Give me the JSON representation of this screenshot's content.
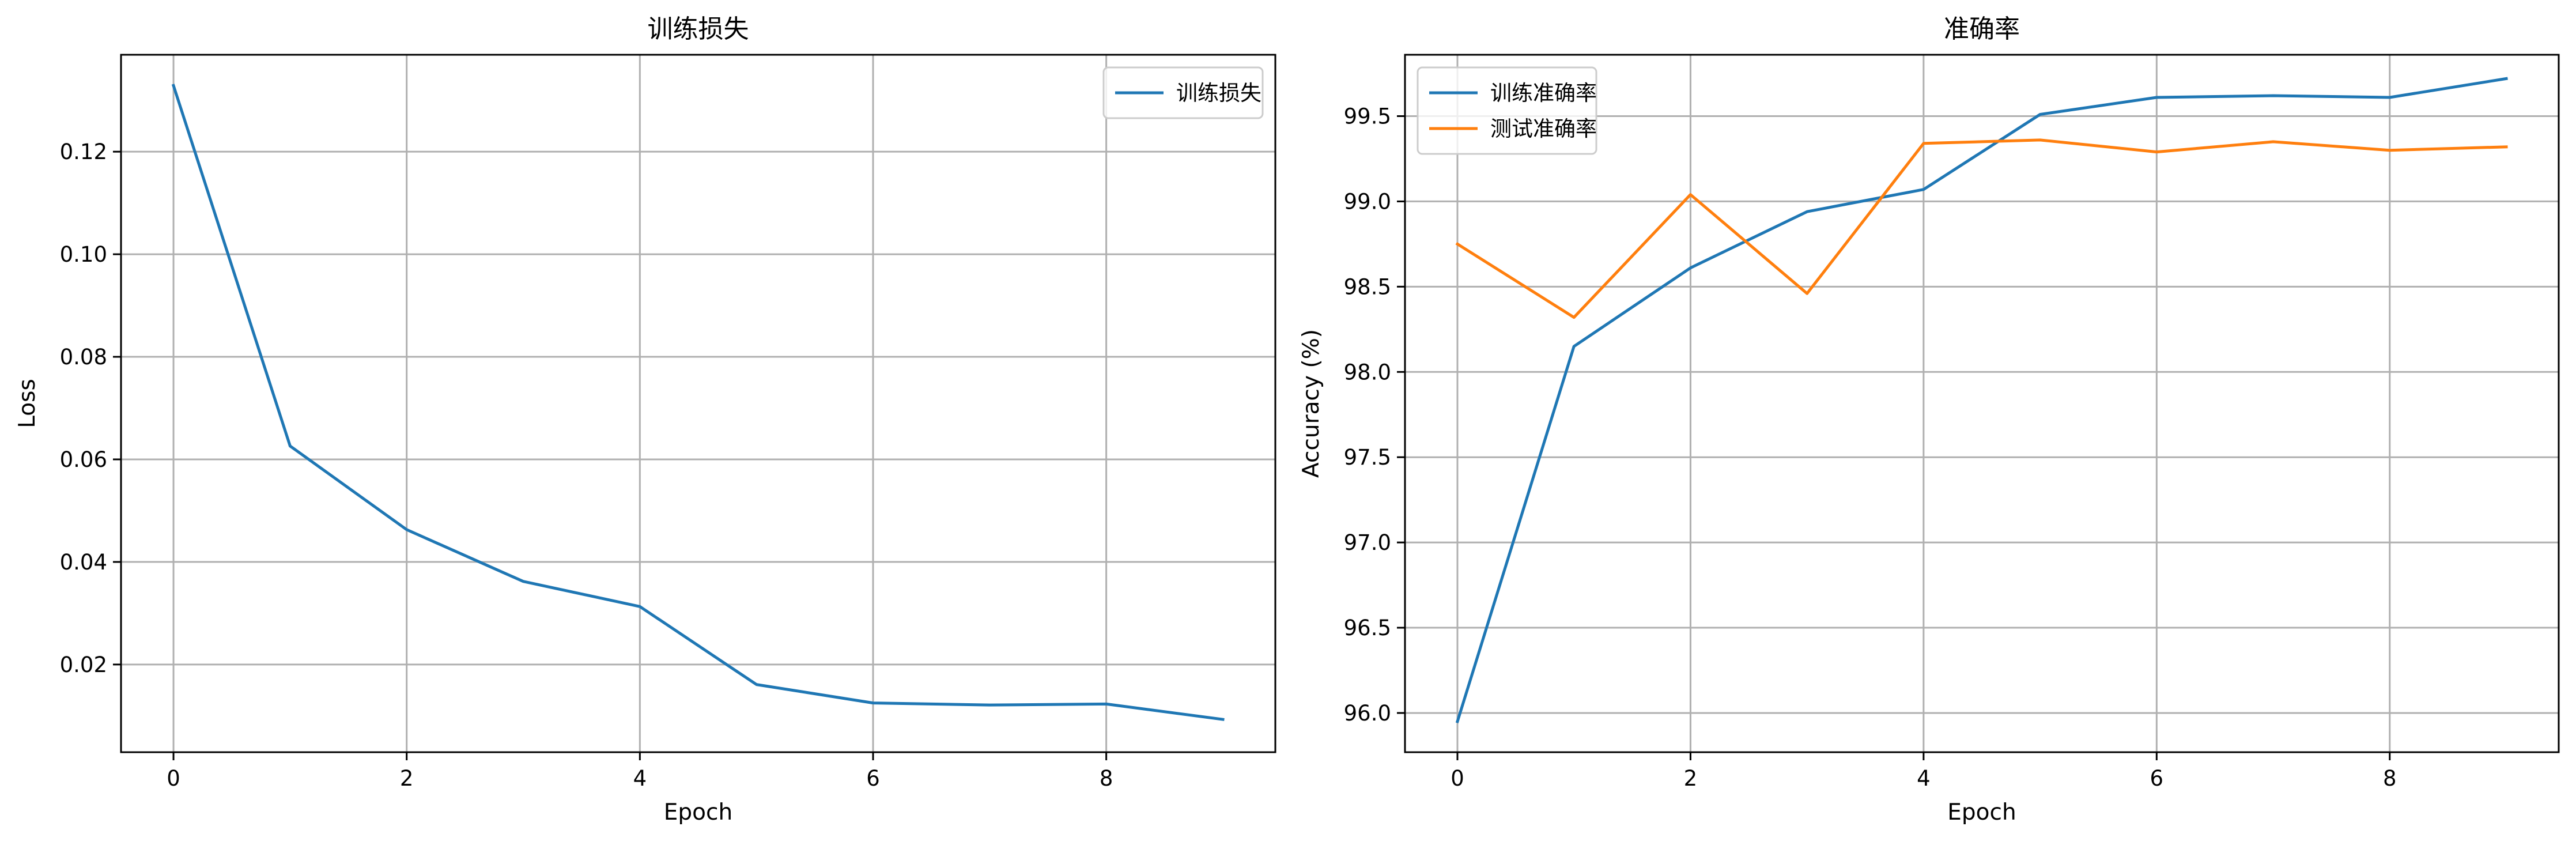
{
  "chart_data": [
    {
      "type": "line",
      "title": "训练损失",
      "xlabel": "Epoch",
      "ylabel": "Loss",
      "x": [
        0,
        1,
        2,
        3,
        4,
        5,
        6,
        7,
        8,
        9
      ],
      "xlim": [
        -0.45,
        9.45
      ],
      "ylim": [
        0.0029,
        0.1389
      ],
      "xticks": [
        0,
        2,
        4,
        6,
        8
      ],
      "xtick_labels": [
        "0",
        "2",
        "4",
        "6",
        "8"
      ],
      "yticks": [
        0.02,
        0.04,
        0.06,
        0.08,
        0.1,
        0.12
      ],
      "ytick_labels": [
        "0.02",
        "0.04",
        "0.06",
        "0.08",
        "0.10",
        "0.12"
      ],
      "grid": true,
      "legend_position": "upper right",
      "series": [
        {
          "name": "训练损失",
          "color": "#1f77b4",
          "values": [
            0.1329,
            0.0626,
            0.0463,
            0.0362,
            0.0313,
            0.0161,
            0.0125,
            0.0121,
            0.0123,
            0.0093
          ]
        }
      ]
    },
    {
      "type": "line",
      "title": "准确率",
      "xlabel": "Epoch",
      "ylabel": "Accuracy (%)",
      "x": [
        0,
        1,
        2,
        3,
        4,
        5,
        6,
        7,
        8,
        9
      ],
      "xlim": [
        -0.45,
        9.45
      ],
      "ylim": [
        95.77,
        99.86
      ],
      "xticks": [
        0,
        2,
        4,
        6,
        8
      ],
      "xtick_labels": [
        "0",
        "2",
        "4",
        "6",
        "8"
      ],
      "yticks": [
        96.0,
        96.5,
        97.0,
        97.5,
        98.0,
        98.5,
        99.0,
        99.5
      ],
      "ytick_labels": [
        "96.0",
        "96.5",
        "97.0",
        "97.5",
        "98.0",
        "98.5",
        "99.0",
        "99.5"
      ],
      "grid": true,
      "legend_position": "upper left",
      "series": [
        {
          "name": "训练准确率",
          "color": "#1f77b4",
          "values": [
            95.95,
            98.15,
            98.61,
            98.94,
            99.07,
            99.51,
            99.61,
            99.62,
            99.61,
            99.72
          ]
        },
        {
          "name": "测试准确率",
          "color": "#ff7f0e",
          "values": [
            98.75,
            98.32,
            99.04,
            98.46,
            99.34,
            99.36,
            99.29,
            99.35,
            99.3,
            99.32
          ]
        }
      ]
    }
  ]
}
